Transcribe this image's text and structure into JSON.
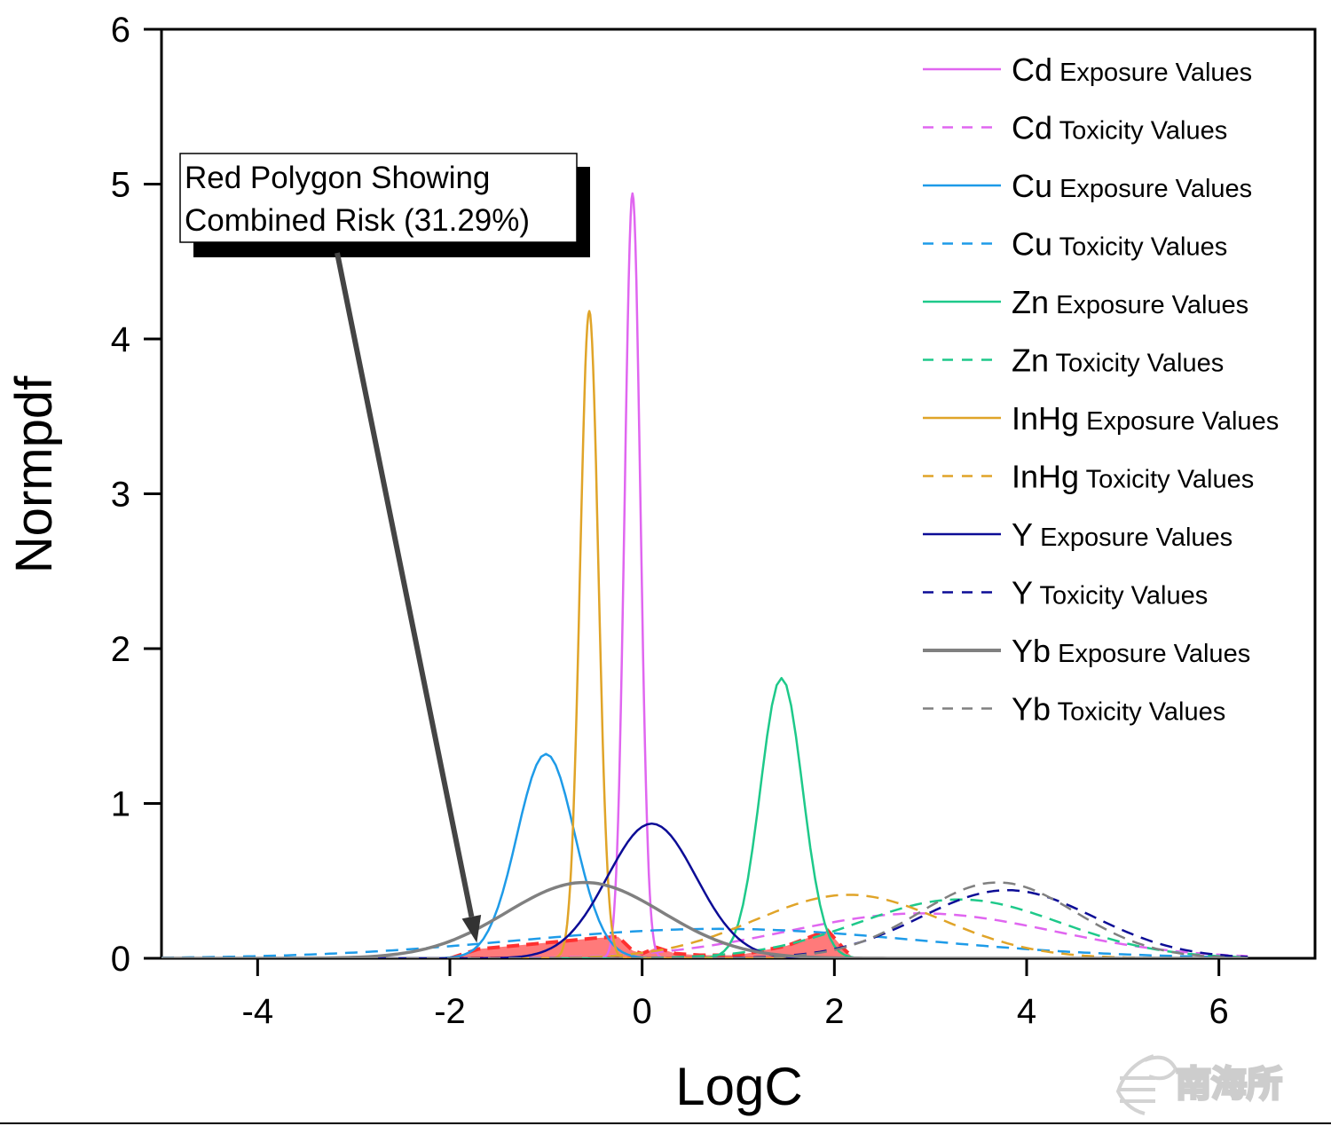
{
  "chart_data": {
    "type": "line",
    "title": "",
    "xlabel": "LogC",
    "ylabel": "Normpdf",
    "xlim": [
      -5,
      7
    ],
    "ylim": [
      0,
      6
    ],
    "xticks": [
      -4,
      -2,
      0,
      2,
      4,
      6
    ],
    "xtick_labels": [
      "-4",
      "-2",
      "0",
      "2",
      "4",
      "6"
    ],
    "yticks": [
      0,
      1,
      2,
      3,
      4,
      5,
      6
    ],
    "ytick_labels": [
      "0",
      "1",
      "2",
      "3",
      "4",
      "5",
      "6"
    ],
    "grid": false,
    "legend_position": "top-right",
    "x_range_plotted": [
      -5,
      6.3
    ],
    "series": [
      {
        "name": "Cd Exposure Values",
        "element": "Cd",
        "kind": "Exposure Values",
        "style": "solid",
        "color": "#e066f0",
        "distribution": "normal",
        "mean": -0.1,
        "sd": 0.081,
        "peak": 4.94
      },
      {
        "name": "Cd Toxicity Values",
        "element": "Cd",
        "kind": "Toxicity Values",
        "style": "dashed",
        "color": "#e066f0",
        "distribution": "normal",
        "mean": 2.9,
        "sd": 1.38,
        "peak": 0.29
      },
      {
        "name": "Cu Exposure Values",
        "element": "Cu",
        "kind": "Exposure Values",
        "style": "solid",
        "color": "#1e9be8",
        "distribution": "normal",
        "mean": -1.0,
        "sd": 0.3,
        "peak": 1.32
      },
      {
        "name": "Cu Toxicity Values",
        "element": "Cu",
        "kind": "Toxicity Values",
        "style": "dashed",
        "color": "#1e9be8",
        "distribution": "normal",
        "mean": 0.8,
        "sd": 2.1,
        "peak": 0.19
      },
      {
        "name": "Zn Exposure Values",
        "element": "Zn",
        "kind": "Exposure Values",
        "style": "solid",
        "color": "#1ec98a",
        "distribution": "normal",
        "mean": 1.45,
        "sd": 0.22,
        "peak": 1.81
      },
      {
        "name": "Zn Toxicity Values",
        "element": "Zn",
        "kind": "Toxicity Values",
        "style": "dashed",
        "color": "#1ec98a",
        "distribution": "normal",
        "mean": 3.3,
        "sd": 1.05,
        "peak": 0.38
      },
      {
        "name": "InHg Exposure Values",
        "element": "InHg",
        "kind": "Exposure Values",
        "style": "solid",
        "color": "#e0a428",
        "distribution": "normal",
        "mean": -0.55,
        "sd": 0.095,
        "peak": 4.18
      },
      {
        "name": "InHg Toxicity Values",
        "element": "InHg",
        "kind": "Toxicity Values",
        "style": "dashed",
        "color": "#e0a428",
        "distribution": "normal",
        "mean": 2.15,
        "sd": 0.97,
        "peak": 0.41
      },
      {
        "name": "Y Exposure Values",
        "element": "Y",
        "kind": "Exposure Values",
        "style": "solid",
        "color": "#0c0c96",
        "distribution": "normal",
        "mean": 0.1,
        "sd": 0.46,
        "peak": 0.87
      },
      {
        "name": "Y Toxicity Values",
        "element": "Y",
        "kind": "Toxicity Values",
        "style": "dashed",
        "color": "#0c0c96",
        "distribution": "normal",
        "mean": 3.8,
        "sd": 0.9,
        "peak": 0.44
      },
      {
        "name": "Yb Exposure Values",
        "element": "Yb",
        "kind": "Exposure Values",
        "style": "solid",
        "color": "#808080",
        "distribution": "normal",
        "mean": -0.6,
        "sd": 0.81,
        "peak": 0.49
      },
      {
        "name": "Yb Toxicity Values",
        "element": "Yb",
        "kind": "Toxicity Values",
        "style": "dashed",
        "color": "#808080",
        "distribution": "normal",
        "mean": 3.7,
        "sd": 0.81,
        "peak": 0.49
      }
    ],
    "risk_polygon": {
      "label": "Combined Risk",
      "percent": "31.29%",
      "fill": "#ff4d4d",
      "outline": "#ff3030",
      "points": [
        [
          -2.0,
          0.0
        ],
        [
          -1.7,
          0.06
        ],
        [
          -1.0,
          0.1
        ],
        [
          -0.5,
          0.13
        ],
        [
          -0.25,
          0.14
        ],
        [
          -0.1,
          0.05
        ],
        [
          0.0,
          0.03
        ],
        [
          0.15,
          0.07
        ],
        [
          0.35,
          0.03
        ],
        [
          0.6,
          0.02
        ],
        [
          1.0,
          0.02
        ],
        [
          1.5,
          0.08
        ],
        [
          1.93,
          0.18
        ],
        [
          2.1,
          0.06
        ],
        [
          2.2,
          0.0
        ],
        [
          -2.0,
          0.0
        ]
      ]
    },
    "annotation": {
      "line1": "Red Polygon Showing",
      "line2": "Combined Risk (31.29%)",
      "arrow_to": [
        -1.72,
        0.1
      ],
      "arrow_from_anchor": "annotation-box"
    }
  },
  "watermark": {
    "text": "南海所"
  }
}
